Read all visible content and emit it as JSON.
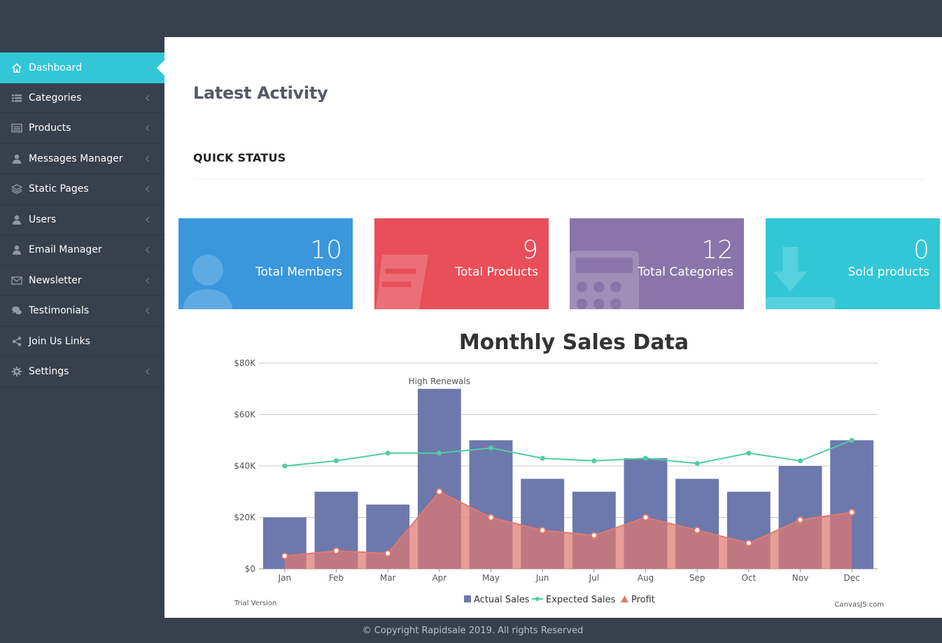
{
  "sidebar": {
    "items": [
      {
        "label": "Dashboard",
        "icon": "home-icon",
        "active": true,
        "chevron": false
      },
      {
        "label": "Categories",
        "icon": "list-icon",
        "active": false,
        "chevron": true
      },
      {
        "label": "Products",
        "icon": "product-list-icon",
        "active": false,
        "chevron": true
      },
      {
        "label": "Messages Manager",
        "icon": "user-icon",
        "active": false,
        "chevron": true
      },
      {
        "label": "Static Pages",
        "icon": "layers-icon",
        "active": false,
        "chevron": true
      },
      {
        "label": "Users",
        "icon": "user-icon",
        "active": false,
        "chevron": true
      },
      {
        "label": "Email Manager",
        "icon": "user-icon",
        "active": false,
        "chevron": true
      },
      {
        "label": "Newsletter",
        "icon": "envelope-icon",
        "active": false,
        "chevron": true
      },
      {
        "label": "Testimonials",
        "icon": "comments-icon",
        "active": false,
        "chevron": true
      },
      {
        "label": "Join Us Links",
        "icon": "share-icon",
        "active": false,
        "chevron": false
      },
      {
        "label": "Settings",
        "icon": "gear-icon",
        "active": false,
        "chevron": true
      }
    ]
  },
  "main": {
    "title": "Latest Activity",
    "section_title": "QUICK STATUS",
    "cards": [
      {
        "value": "10",
        "label": "Total Members",
        "color": "#3a97dc",
        "icon": "user-icon"
      },
      {
        "value": "9",
        "label": "Total Products",
        "color": "#e84f5a",
        "icon": "product-icon"
      },
      {
        "value": "12",
        "label": "Total Categories",
        "color": "#8a75a9",
        "icon": "calculator-icon"
      },
      {
        "value": "0",
        "label": "Sold products",
        "color": "#32c7d6",
        "icon": "download-icon"
      }
    ]
  },
  "chart_data": {
    "type": "bar",
    "title": "Monthly Sales Data",
    "categories": [
      "Jan",
      "Feb",
      "Mar",
      "Apr",
      "May",
      "Jun",
      "Jul",
      "Aug",
      "Sep",
      "Oct",
      "Nov",
      "Dec"
    ],
    "series": [
      {
        "name": "Actual Sales",
        "type": "bar",
        "color": "#6d78ad",
        "values": [
          20000,
          30000,
          25000,
          70000,
          50000,
          35000,
          30000,
          43000,
          35000,
          30000,
          40000,
          50000
        ]
      },
      {
        "name": "Expected Sales",
        "type": "line",
        "color": "#51cda0",
        "values": [
          40000,
          42000,
          45000,
          45000,
          47000,
          43000,
          42000,
          43000,
          41000,
          45000,
          42000,
          50000
        ]
      },
      {
        "name": "Profit",
        "type": "area",
        "color": "#df7970",
        "values": [
          5000,
          7000,
          6000,
          30000,
          20000,
          15000,
          13000,
          20000,
          15000,
          10000,
          19000,
          22000
        ]
      }
    ],
    "ylim": [
      0,
      80000
    ],
    "yticks": [
      0,
      20000,
      40000,
      60000,
      80000
    ],
    "ytick_labels": [
      "$0",
      "$20K",
      "$40K",
      "$60K",
      "$80K"
    ],
    "annotation": {
      "category": "Apr",
      "text": "High Renewals"
    },
    "grid": true,
    "legend": "bottom",
    "watermark_left": "Trial Version",
    "watermark_right": "CanvasJS.com"
  },
  "footer": {
    "text": "© Copyright Rapidsale 2019. All rights Reserved"
  }
}
